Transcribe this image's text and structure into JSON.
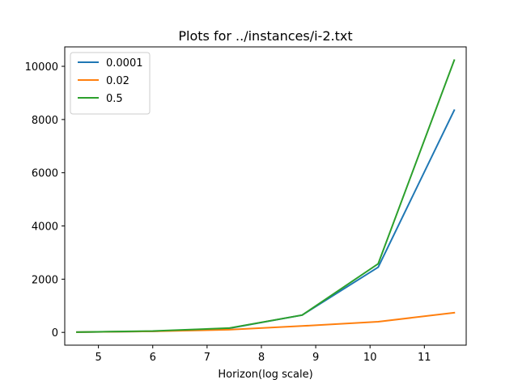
{
  "chart_data": {
    "type": "line",
    "title": "Plots for ../instances/i-2.txt",
    "xlabel": "Horizon(log scale)",
    "ylabel": "",
    "xlim": [
      4.38,
      11.77
    ],
    "ylim": [
      -480,
      10730
    ],
    "x_ticks": [
      5,
      6,
      7,
      8,
      9,
      10,
      11
    ],
    "y_ticks": [
      0,
      2000,
      4000,
      6000,
      8000,
      10000
    ],
    "x": [
      4.605,
      6.0,
      7.4,
      8.75,
      10.15,
      11.55
    ],
    "series": [
      {
        "name": "0.0001",
        "color": "#1f77b4",
        "values": [
          10,
          40,
          150,
          650,
          2450,
          8350
        ]
      },
      {
        "name": "0.02",
        "color": "#ff7f0e",
        "values": [
          10,
          40,
          100,
          240,
          400,
          740
        ]
      },
      {
        "name": "0.5",
        "color": "#2ca02c",
        "values": [
          10,
          50,
          160,
          650,
          2580,
          10230
        ]
      }
    ],
    "grid": false,
    "legend_position": "top-left"
  }
}
